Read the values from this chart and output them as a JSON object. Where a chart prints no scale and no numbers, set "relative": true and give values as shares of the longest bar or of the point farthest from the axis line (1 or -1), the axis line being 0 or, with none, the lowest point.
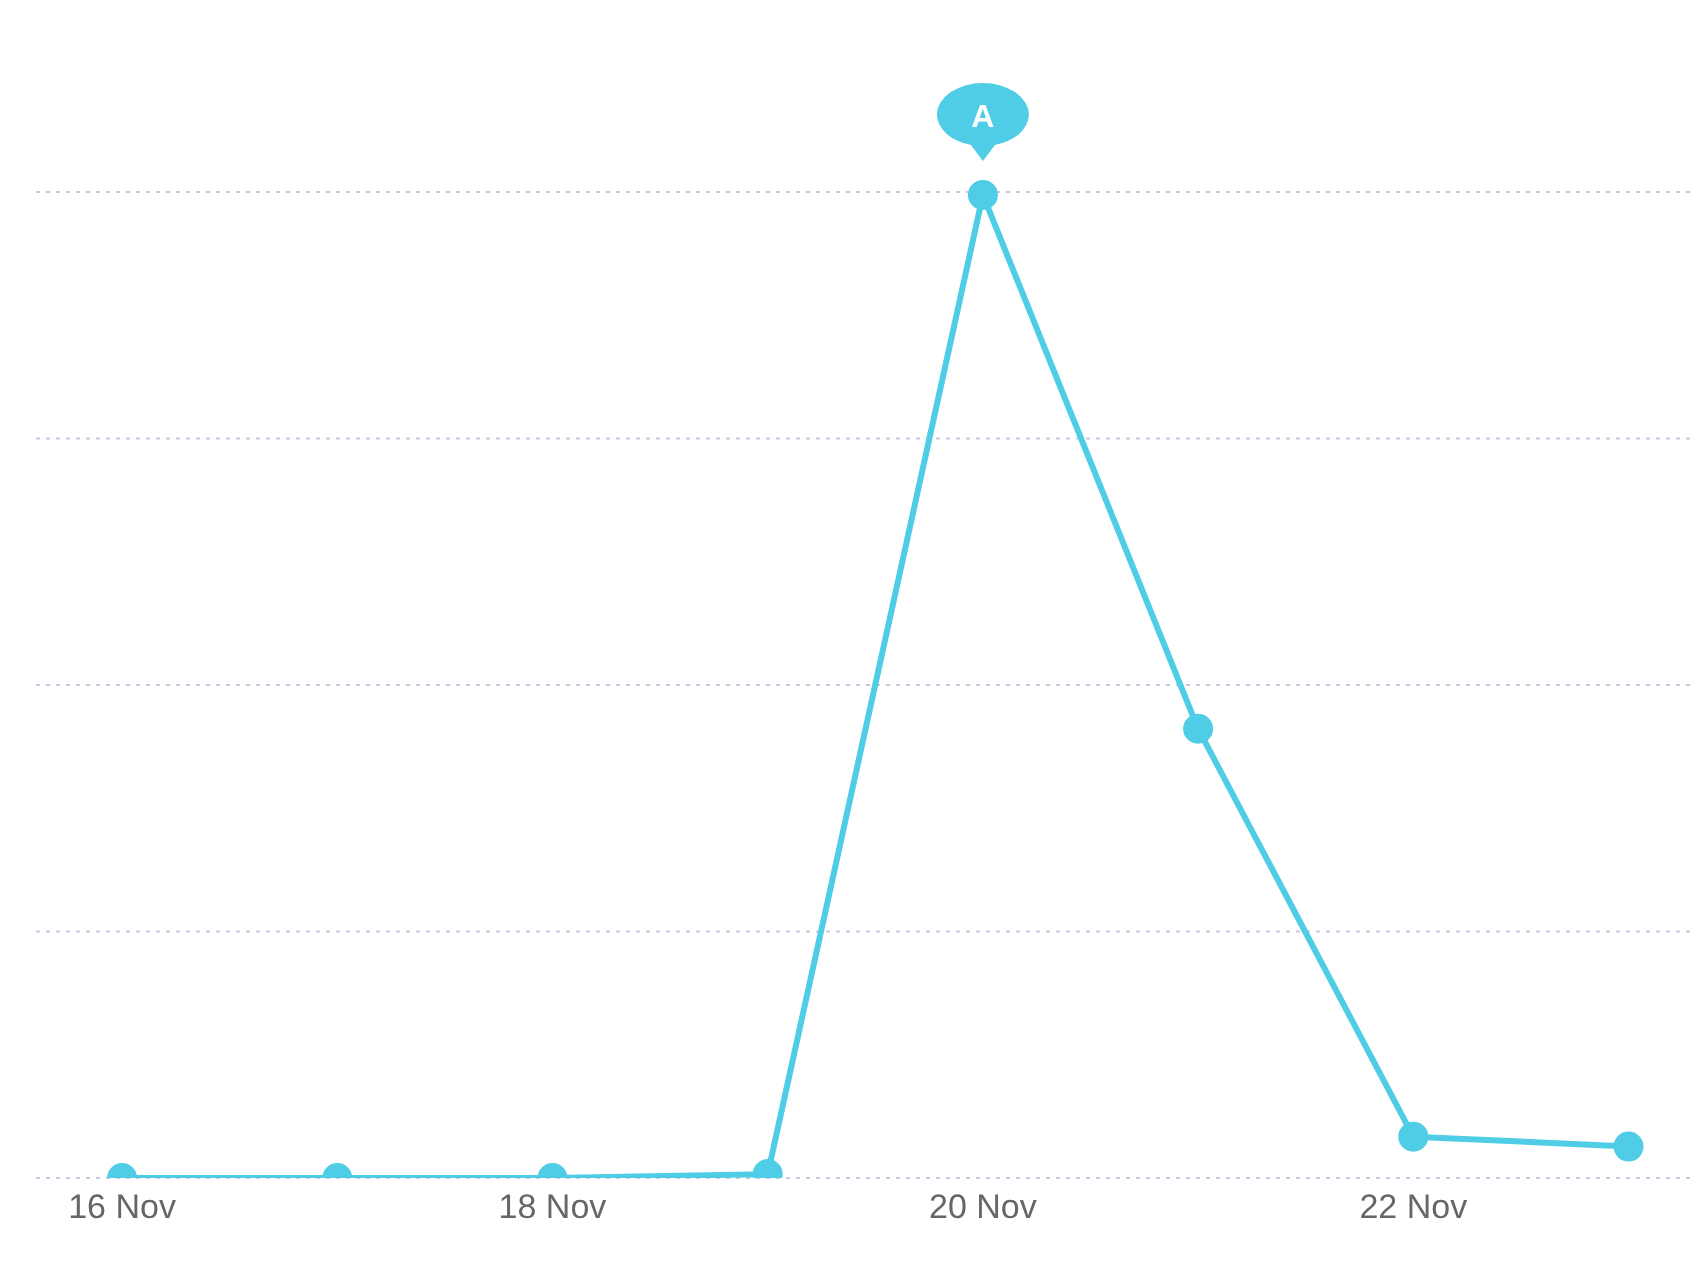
{
  "chart_data": {
    "type": "line",
    "relative": true,
    "categories": [
      "16 Nov",
      null,
      "18 Nov",
      null,
      "20 Nov",
      null,
      "22 Nov",
      null
    ],
    "series": [
      {
        "color": "#4fcde6",
        "values": [
          0,
          0,
          0,
          0.004,
          1,
          0.457,
          0.042,
          0.032
        ]
      }
    ],
    "marker": "circle",
    "line_style": "solid",
    "grid": "y",
    "annotations": [
      {
        "text": "A",
        "x": "20 Nov",
        "y": 1
      }
    ]
  }
}
